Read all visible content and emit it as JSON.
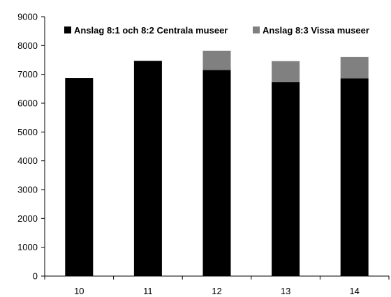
{
  "chart_data": {
    "type": "bar",
    "stacked": true,
    "title": "",
    "xlabel": "",
    "ylabel": "",
    "categories": [
      "10",
      "11",
      "12",
      "13",
      "14"
    ],
    "ylim": [
      0,
      9000
    ],
    "yticks": [
      0,
      1000,
      2000,
      3000,
      4000,
      5000,
      6000,
      7000,
      8000,
      9000
    ],
    "grid": false,
    "legend_position": "top",
    "series": [
      {
        "name": "Anslag 8:1 och 8:2 Centrala museer",
        "color": "#000000",
        "values": [
          6870,
          7470,
          7150,
          6730,
          6860
        ]
      },
      {
        "name": "Anslag 8:3 Vissa museer",
        "color": "#808080",
        "values": [
          0,
          0,
          670,
          730,
          740
        ]
      }
    ]
  }
}
